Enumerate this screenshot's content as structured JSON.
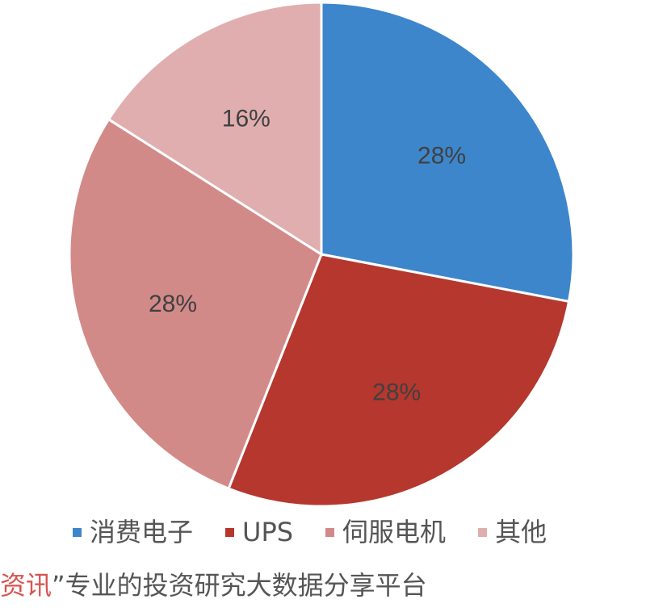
{
  "chart_data": {
    "type": "pie",
    "categories": [
      "消费电子",
      "UPS",
      "伺服电机",
      "其他"
    ],
    "values": [
      28,
      28,
      28,
      16
    ],
    "labels": [
      "28%",
      "28%",
      "28%",
      "16%"
    ],
    "colors": [
      "#3D86CC",
      "#B5372E",
      "#D28A89",
      "#E0AEAF"
    ],
    "start_angle": "top",
    "direction": "clockwise",
    "legend_position": "bottom"
  },
  "watermark": {
    "highlight": "资讯",
    "text": "”专业的投资研究大数据分享平台"
  }
}
